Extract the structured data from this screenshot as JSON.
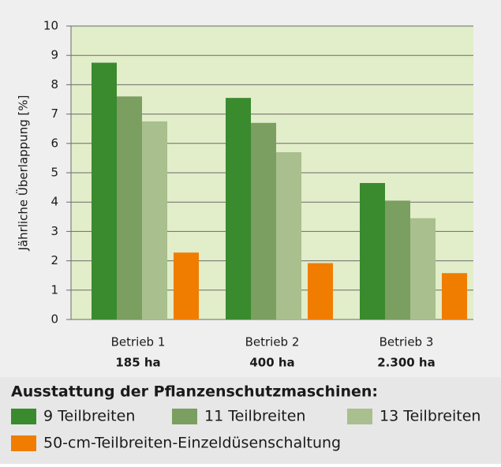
{
  "chart_data": {
    "type": "bar",
    "y_label": "Jährliche Überlappung [%]",
    "categories": [
      "Betrieb 1",
      "Betrieb 2",
      "Betrieb 3"
    ],
    "category_sublabels": [
      "185 ha",
      "400 ha",
      "2.300 ha"
    ],
    "series": [
      {
        "name": "9 Teilbreiten",
        "color": "#3a8a2e",
        "values": [
          8.75,
          7.55,
          4.65
        ]
      },
      {
        "name": "11 Teilbreiten",
        "color": "#7b9f60",
        "values": [
          7.6,
          6.7,
          4.05
        ]
      },
      {
        "name": "13 Teilbreiten",
        "color": "#a9bf8d",
        "values": [
          6.75,
          5.7,
          3.45
        ]
      },
      {
        "name": "50-cm-Teilbreiten-Einzeldüsenschaltung",
        "color": "#f07d00",
        "values": [
          2.28,
          1.92,
          1.58
        ]
      }
    ],
    "legend_title": "Ausstattung der Pflanzenschutzmaschinen:",
    "ylim": [
      0,
      10
    ],
    "yticks": [
      0,
      1,
      2,
      3,
      4,
      5,
      6,
      7,
      8,
      9,
      10
    ],
    "grid": true
  }
}
